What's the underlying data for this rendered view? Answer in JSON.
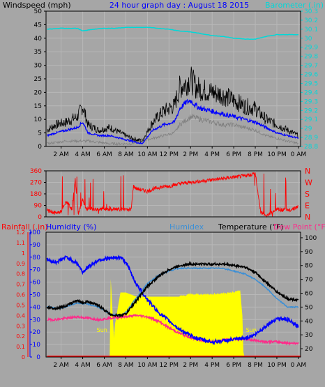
{
  "title": "24 hour graph day : August 18 2015",
  "colors": {
    "background": "#a6a6a6",
    "plot_bg": "#a6a6a6",
    "grid": "#b8b8b8",
    "title": "#0000ff",
    "wind_gust": "#000000",
    "wind_avg": "#0000ff",
    "wind_low": "#808080",
    "barometer": "#00d8d8",
    "wind_dir": "#ff0000",
    "temperature": "#000000",
    "humidity": "#0000ff",
    "humidex": "#3b8fd6",
    "dew_point": "#ff2a8a",
    "rainfall": "#ff0000",
    "sun": "#ffff00"
  },
  "x_tick_labels": [
    "2 AM",
    "4 AM",
    "6 AM",
    "8 AM",
    "10 AM",
    "12 PM",
    "2 PM",
    "4 PM",
    "6 PM",
    "8 PM",
    "10 PM",
    "0 AM"
  ],
  "panel_wind": {
    "left_label": "Windspeed (mph)",
    "right_label": "Barometer (.in)",
    "y_ticks": [
      "0",
      "5",
      "10",
      "15",
      "20",
      "25",
      "30",
      "35",
      "40",
      "45",
      "50"
    ],
    "y_range": [
      0,
      50
    ],
    "right_ticks": [
      "28.8",
      "28.9",
      "29",
      "29.1",
      "29.2",
      "29.3",
      "29.4",
      "29.5",
      "29.6",
      "29.7",
      "29.8",
      "29.9",
      "30",
      "30.1",
      "30.2",
      "30.3"
    ],
    "right_range": [
      28.8,
      30.3
    ]
  },
  "panel_dir": {
    "y_ticks": [
      "0",
      "90",
      "180",
      "270",
      "360"
    ],
    "y_range": [
      0,
      360
    ],
    "compass": [
      "N",
      "W",
      "S",
      "E",
      "N"
    ]
  },
  "panel_weather": {
    "labels": {
      "rainfall": "Rainfall (.in)",
      "humidity": "Humidity (%)",
      "humidex": "Humidex",
      "temperature": "Temperature (°F)",
      "dew_point": "Dew Point (°F)"
    },
    "rain_ticks": [
      "0",
      "0.1",
      "0.2",
      "0.3",
      "0.4",
      "0.5",
      "0.6",
      "0.7",
      "0.8",
      "0.9",
      "1",
      "1.1",
      "1.2"
    ],
    "rain_range": [
      0,
      1.2
    ],
    "humidity_ticks": [
      "0",
      "10",
      "20",
      "30",
      "40",
      "50",
      "60",
      "70",
      "80",
      "90",
      "100"
    ],
    "humidity_range": [
      0,
      100
    ],
    "temp_ticks": [
      "20",
      "30",
      "40",
      "50",
      "60",
      "70",
      "80",
      "90",
      "100"
    ],
    "temp_range": [
      14,
      104
    ],
    "sun_rise_label": "Sun",
    "sun_set_label": "Sun"
  },
  "chart_data": [
    {
      "type": "line",
      "title": "24 hour graph day : August 18 2015",
      "x_unit": "hours",
      "xlim": [
        0.6,
        24.2
      ],
      "ylabel": "Windspeed (mph)",
      "ylim": [
        0,
        50
      ],
      "y2label": "Barometer (.in)",
      "y2lim": [
        28.8,
        30.3
      ],
      "grid": true,
      "series": [
        {
          "name": "",
          "role": "gust",
          "x": [
            0.7,
            1.5,
            2.5,
            3.5,
            4.0,
            4.5,
            5.5,
            6.5,
            7.5,
            8.5,
            9.5,
            10.5,
            11.5,
            12.5,
            13.0,
            13.5,
            14.0,
            14.5,
            15.0,
            16.0,
            17.0,
            18.0,
            19.0,
            20.0,
            21.0,
            22.0,
            23.0,
            24.0
          ],
          "y": [
            6,
            8,
            9,
            11,
            15,
            8,
            6,
            7,
            5,
            3,
            2,
            9,
            13,
            15,
            22,
            23,
            25,
            22,
            21,
            20,
            19,
            17,
            15,
            14,
            10,
            8,
            6,
            4
          ]
        },
        {
          "name": "",
          "role": "average",
          "x": [
            0.7,
            1.5,
            2.5,
            3.5,
            4.0,
            4.5,
            5.5,
            6.5,
            7.5,
            8.5,
            9.5,
            10.5,
            11.5,
            12.5,
            13.0,
            13.5,
            14.0,
            14.5,
            15.0,
            16.0,
            17.0,
            18.0,
            19.0,
            20.0,
            21.0,
            22.0,
            23.0,
            24.0
          ],
          "y": [
            4,
            5,
            6,
            7,
            9,
            5,
            4,
            4,
            3,
            2,
            1,
            6,
            8,
            9,
            14,
            16,
            17,
            15,
            14,
            13,
            12,
            11,
            10,
            9,
            7,
            5,
            4,
            3
          ]
        },
        {
          "name": "",
          "role": "low",
          "x": [
            0.7,
            2.5,
            4.5,
            6.5,
            8.5,
            10.5,
            12.5,
            13.0,
            14.0,
            15.0,
            16.0,
            17.0,
            18.0,
            19.0,
            20.0,
            21.0,
            22.0,
            23.0,
            24.0
          ],
          "y": [
            1,
            2,
            2,
            1,
            1,
            3,
            5,
            8,
            11,
            10,
            9,
            8,
            8,
            7,
            6,
            4,
            3,
            2,
            1
          ]
        },
        {
          "name": "Barometer (.in)",
          "axis": "y2",
          "x": [
            0.7,
            2.0,
            3.5,
            4.0,
            5.0,
            6.0,
            7.0,
            8.0,
            9.0,
            10.0,
            11.0,
            12.0,
            13.0,
            14.0,
            15.0,
            16.0,
            17.0,
            18.0,
            19.0,
            20.0,
            21.0,
            22.0,
            23.0,
            24.0
          ],
          "y": [
            30.1,
            30.11,
            30.11,
            30.08,
            30.1,
            30.11,
            30.11,
            30.12,
            30.12,
            30.12,
            30.11,
            30.1,
            30.08,
            30.07,
            30.05,
            30.03,
            30.02,
            30.0,
            29.99,
            29.99,
            30.02,
            30.04,
            30.04,
            30.04
          ]
        }
      ]
    },
    {
      "type": "line",
      "x_unit": "hours",
      "xlim": [
        0.6,
        24.2
      ],
      "ylim": [
        0,
        360
      ],
      "y2_tick_labels": [
        "N",
        "W",
        "S",
        "E",
        "N"
      ],
      "grid": true,
      "series": [
        {
          "name": "",
          "role": "wind_direction",
          "x": [
            0.7,
            1.5,
            2.0,
            2.5,
            3.0,
            3.3,
            3.6,
            4.0,
            4.3,
            4.6,
            5.0,
            5.5,
            6.0,
            7.0,
            8.0,
            8.5,
            8.7,
            9.0,
            10.0,
            11.0,
            12.0,
            13.0,
            14.0,
            15.0,
            16.0,
            17.0,
            18.0,
            19.0,
            19.5,
            20.0,
            20.5,
            21.0,
            22.0,
            23.0,
            24.0
          ],
          "y": [
            50,
            30,
            40,
            120,
            60,
            300,
            20,
            140,
            60,
            60,
            60,
            60,
            60,
            60,
            60,
            60,
            240,
            220,
            200,
            230,
            240,
            260,
            270,
            280,
            290,
            300,
            310,
            320,
            330,
            340,
            40,
            10,
            60,
            50,
            80
          ]
        }
      ]
    },
    {
      "type": "line",
      "x_unit": "hours",
      "xlim": [
        0.6,
        24.2
      ],
      "ylabel": "Temperature (°F)",
      "ylim": [
        14,
        104
      ],
      "y2label": "Humidity (%)",
      "y2lim": [
        0,
        100
      ],
      "y3label": "Rainfall (.in)",
      "y3lim": [
        0,
        1.2
      ],
      "grid": true,
      "series": [
        {
          "name": "Temperature (°F)",
          "x": [
            0.7,
            1.5,
            2.5,
            3.5,
            4.0,
            4.5,
            5.5,
            6.5,
            7.0,
            7.5,
            8.0,
            9.0,
            10.0,
            11.0,
            12.0,
            13.0,
            14.0,
            15.0,
            16.0,
            17.0,
            18.0,
            19.0,
            20.0,
            21.0,
            22.0,
            23.0,
            24.0
          ],
          "y": [
            50,
            49,
            51,
            55,
            53,
            54,
            51,
            45,
            44,
            44,
            45,
            55,
            65,
            72,
            77,
            80,
            81,
            81,
            81,
            81,
            80,
            79,
            75,
            68,
            61,
            56,
            55
          ]
        },
        {
          "name": "Humidity (%)",
          "axis": "y2",
          "x": [
            0.7,
            1.5,
            2.5,
            3.5,
            4.0,
            4.5,
            5.5,
            6.5,
            7.5,
            8.0,
            9.0,
            10.0,
            11.0,
            12.0,
            13.0,
            14.0,
            15.0,
            16.0,
            17.0,
            18.0,
            19.0,
            20.0,
            21.0,
            22.0,
            23.0,
            24.0
          ],
          "y": [
            78,
            76,
            80,
            75,
            68,
            72,
            78,
            79,
            80,
            76,
            58,
            46,
            36,
            29,
            22,
            17,
            14,
            12,
            13,
            14,
            15,
            18,
            25,
            31,
            30,
            24
          ]
        },
        {
          "name": "Humidex",
          "x": [
            0.7,
            2.0,
            3.5,
            4.5,
            5.5,
            6.5,
            7.5,
            8.0,
            9.0,
            10.0,
            11.0,
            12.0,
            13.0,
            14.0,
            15.0,
            16.0,
            17.0,
            18.0,
            19.0,
            20.0,
            21.0,
            22.0,
            23.0,
            24.0
          ],
          "y": [
            50,
            49,
            53,
            52,
            50,
            45,
            44,
            46,
            57,
            67,
            73,
            76,
            78,
            78,
            78,
            78,
            78,
            76,
            74,
            70,
            64,
            56,
            50,
            50
          ]
        },
        {
          "name": "Dew Point (°F)",
          "x": [
            0.7,
            1.5,
            2.5,
            3.5,
            4.5,
            5.5,
            6.5,
            7.5,
            8.0,
            9.0,
            10.0,
            11.0,
            12.0,
            13.0,
            14.0,
            15.0,
            16.0,
            17.0,
            18.0,
            19.0,
            20.0,
            21.0,
            22.0,
            23.0,
            24.0
          ],
          "y": [
            41,
            41,
            42,
            43,
            42,
            41,
            42,
            43,
            43,
            44,
            43,
            40,
            35,
            31,
            28,
            26,
            25,
            26,
            27,
            27,
            26,
            25,
            25,
            24,
            24
          ]
        },
        {
          "name": "Rainfall (.in)",
          "axis": "y3",
          "x": [
            0.7,
            24.2
          ],
          "y": [
            0,
            0
          ]
        },
        {
          "name": "",
          "role": "sunshine",
          "type": "area",
          "axis": "y3",
          "x": [
            6.5,
            6.6,
            6.9,
            7.0,
            7.5,
            8.0,
            8.5,
            9.0,
            10.0,
            11.0,
            12.0,
            13.0,
            14.0,
            15.0,
            16.0,
            17.0,
            18.0,
            18.6,
            18.8,
            18.9,
            19.0
          ],
          "y": [
            0,
            0.75,
            0.18,
            0.32,
            0.62,
            0.62,
            0.6,
            0.58,
            0.58,
            0.58,
            0.58,
            0.58,
            0.6,
            0.6,
            0.6,
            0.61,
            0.62,
            0.64,
            0.4,
            0.05,
            0
          ]
        }
      ]
    }
  ]
}
